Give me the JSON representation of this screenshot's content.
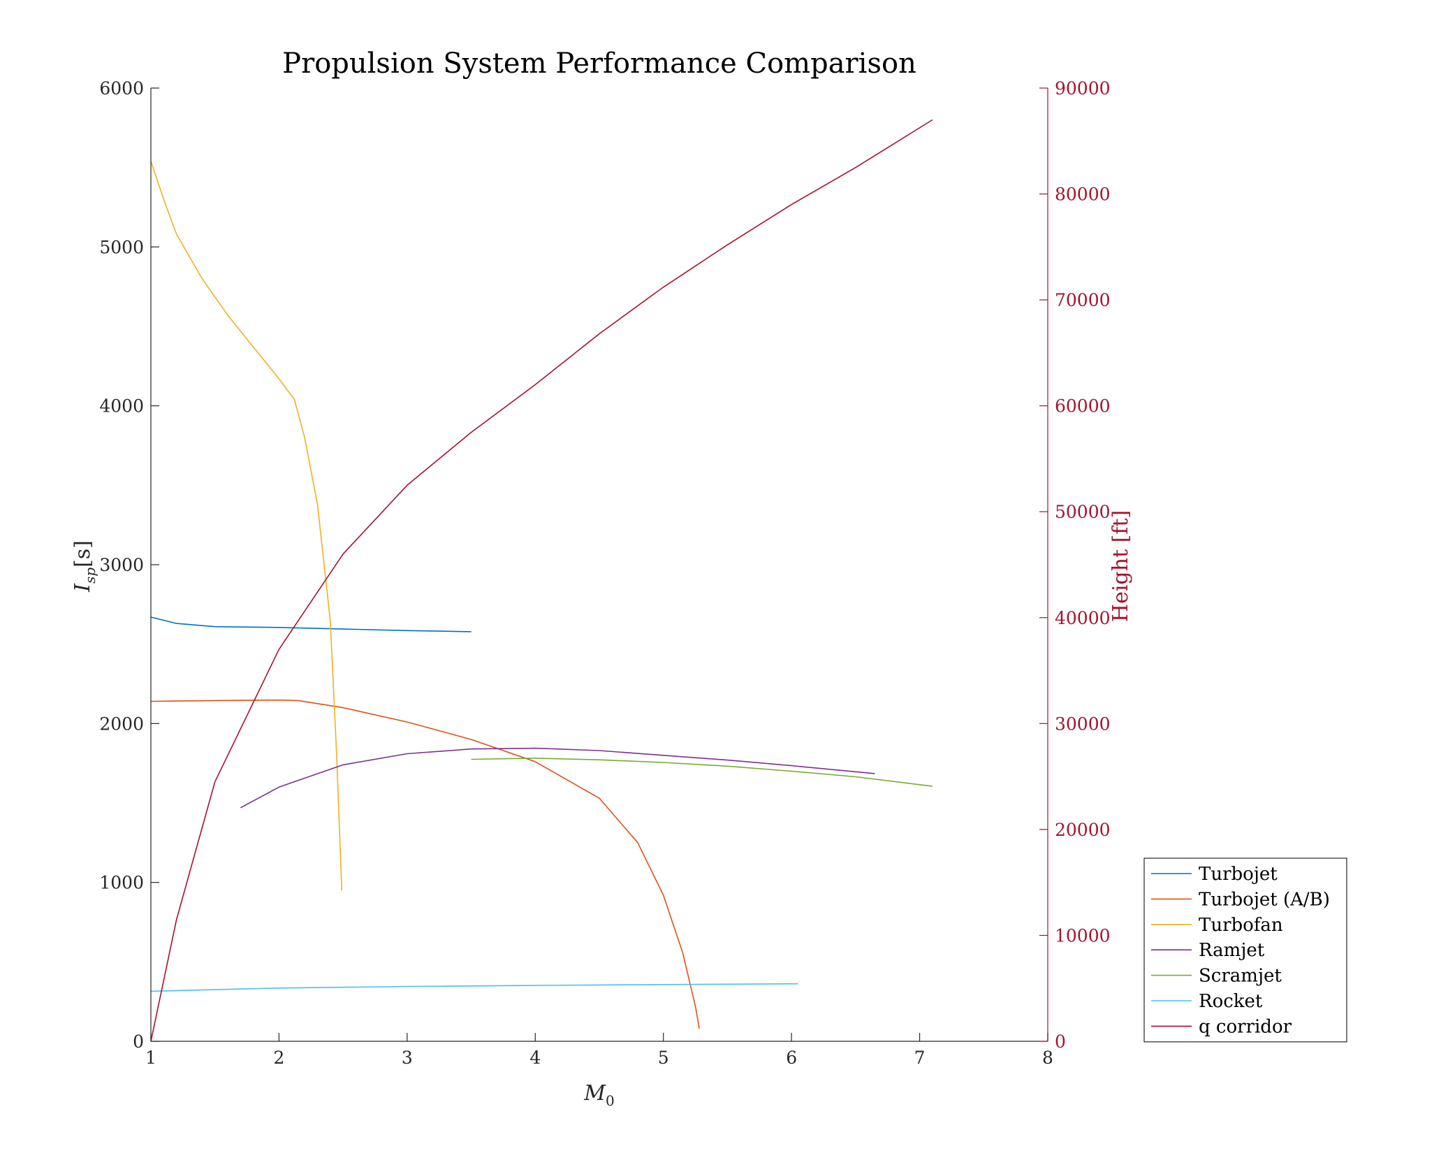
{
  "chart_data": {
    "type": "line",
    "title": "Propulsion System Performance Comparison",
    "xlabel": "M0",
    "xlabel_main": "M",
    "xlabel_sub": "0",
    "ylabel_main": "I",
    "ylabel_sub": "sp",
    "ylabel_unit": "[s]",
    "y2label": "Height [ft]",
    "xlim": [
      1,
      8
    ],
    "ylim": [
      0,
      6000
    ],
    "y2lim": [
      0,
      90000
    ],
    "xticks": [
      "1",
      "2",
      "3",
      "4",
      "5",
      "6",
      "7",
      "8"
    ],
    "yticks": [
      "0",
      "1000",
      "2000",
      "3000",
      "4000",
      "5000",
      "6000"
    ],
    "y2ticks": [
      "0",
      "10000",
      "20000",
      "30000",
      "40000",
      "50000",
      "60000",
      "70000",
      "80000",
      "90000"
    ],
    "grid": false,
    "legend_position": "outside-bottom-right",
    "series": [
      {
        "name": "Turbojet",
        "color": "#0072bd",
        "axis": "left",
        "points": [
          [
            1.0,
            2670
          ],
          [
            1.2,
            2630
          ],
          [
            1.5,
            2610
          ],
          [
            2.0,
            2605
          ],
          [
            2.5,
            2595
          ],
          [
            3.0,
            2585
          ],
          [
            3.5,
            2578
          ]
        ]
      },
      {
        "name": "Turbojet (A/B)",
        "color": "#d95319",
        "axis": "left",
        "points": [
          [
            1.0,
            2140
          ],
          [
            1.5,
            2145
          ],
          [
            2.0,
            2148
          ],
          [
            2.15,
            2145
          ],
          [
            2.5,
            2100
          ],
          [
            3.0,
            2010
          ],
          [
            3.5,
            1900
          ],
          [
            4.0,
            1760
          ],
          [
            4.5,
            1530
          ],
          [
            4.8,
            1250
          ],
          [
            5.0,
            920
          ],
          [
            5.15,
            560
          ],
          [
            5.25,
            220
          ],
          [
            5.28,
            80
          ]
        ]
      },
      {
        "name": "Turbofan",
        "color": "#edb120",
        "axis": "left",
        "points": [
          [
            1.0,
            5540
          ],
          [
            1.1,
            5300
          ],
          [
            1.2,
            5080
          ],
          [
            1.4,
            4800
          ],
          [
            1.6,
            4570
          ],
          [
            1.8,
            4370
          ],
          [
            2.0,
            4170
          ],
          [
            2.12,
            4040
          ],
          [
            2.2,
            3800
          ],
          [
            2.3,
            3380
          ],
          [
            2.4,
            2650
          ],
          [
            2.45,
            1800
          ],
          [
            2.49,
            950
          ]
        ]
      },
      {
        "name": "Ramjet",
        "color": "#7e2f8e",
        "axis": "left",
        "points": [
          [
            1.7,
            1470
          ],
          [
            2.0,
            1600
          ],
          [
            2.5,
            1740
          ],
          [
            3.0,
            1810
          ],
          [
            3.5,
            1840
          ],
          [
            4.0,
            1845
          ],
          [
            4.5,
            1830
          ],
          [
            5.0,
            1800
          ],
          [
            5.5,
            1770
          ],
          [
            6.0,
            1735
          ],
          [
            6.65,
            1685
          ]
        ]
      },
      {
        "name": "Scramjet",
        "color": "#77ac30",
        "axis": "left",
        "points": [
          [
            3.5,
            1775
          ],
          [
            4.0,
            1782
          ],
          [
            4.5,
            1772
          ],
          [
            5.0,
            1755
          ],
          [
            5.5,
            1732
          ],
          [
            6.0,
            1700
          ],
          [
            6.5,
            1665
          ],
          [
            7.1,
            1605
          ]
        ]
      },
      {
        "name": "Rocket",
        "color": "#4dbeee",
        "axis": "left",
        "points": [
          [
            1.0,
            315
          ],
          [
            1.5,
            325
          ],
          [
            2.0,
            335
          ],
          [
            3.0,
            345
          ],
          [
            4.0,
            352
          ],
          [
            5.0,
            357
          ],
          [
            6.05,
            362
          ]
        ]
      },
      {
        "name": "q corridor",
        "color": "#a2142f",
        "axis": "right",
        "points": [
          [
            1.0,
            0
          ],
          [
            1.2,
            11500
          ],
          [
            1.5,
            24500
          ],
          [
            2.0,
            37000
          ],
          [
            2.5,
            46000
          ],
          [
            3.0,
            52500
          ],
          [
            3.5,
            57500
          ],
          [
            4.0,
            62000
          ],
          [
            4.5,
            66800
          ],
          [
            5.0,
            71200
          ],
          [
            5.5,
            75200
          ],
          [
            6.0,
            79000
          ],
          [
            6.5,
            82500
          ],
          [
            7.1,
            87000
          ]
        ]
      }
    ]
  }
}
